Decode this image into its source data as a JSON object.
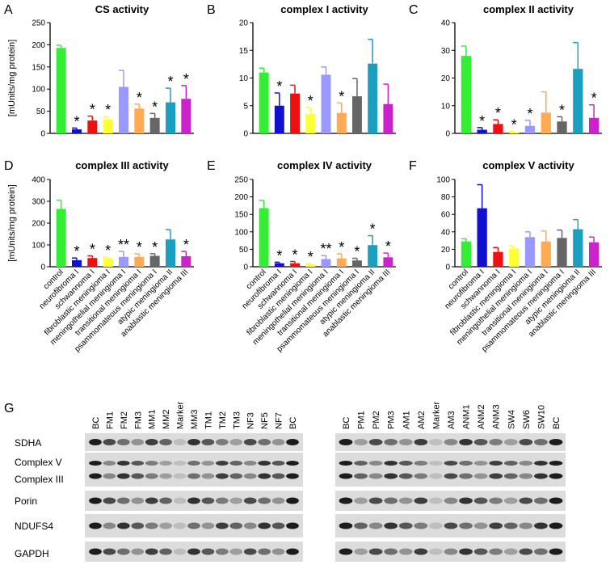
{
  "chart_data": [
    {
      "type": "bar",
      "letter": "A",
      "title": "CS activity",
      "ylabel": "[mUnits/mg protein]",
      "values": [
        193,
        9,
        29,
        31,
        105,
        56,
        35,
        70,
        78
      ],
      "errors": [
        6,
        3,
        10,
        7,
        37,
        10,
        10,
        32,
        30
      ],
      "markers": [
        null,
        "*",
        "*",
        "*",
        null,
        "*",
        "*",
        "*",
        "*"
      ],
      "colors": [
        "#33ee33",
        "#1010d0",
        "#ee1010",
        "#ffff33",
        "#9999ff",
        "#ffaa55",
        "#666666",
        "#1a9fbf",
        "#cc22cc"
      ],
      "ylim": [
        0,
        250
      ],
      "yticks": [
        0,
        50,
        100,
        150,
        200,
        250
      ]
    },
    {
      "type": "bar",
      "letter": "B",
      "title": "complex I activity",
      "values": [
        11,
        5,
        7.2,
        3.5,
        10.6,
        3.7,
        6.7,
        12.6,
        5.3
      ],
      "errors": [
        0.8,
        2.3,
        1.5,
        1.2,
        1.4,
        1.8,
        3.2,
        4.4,
        3.6
      ],
      "markers": [
        null,
        "*",
        null,
        "*",
        null,
        "*",
        null,
        null,
        null
      ],
      "colors": [
        "#33ee33",
        "#1010d0",
        "#ee1010",
        "#ffff33",
        "#9999ff",
        "#ffaa55",
        "#666666",
        "#1a9fbf",
        "#cc22cc"
      ],
      "ylim": [
        0,
        20
      ],
      "yticks": [
        0,
        5,
        10,
        15,
        20
      ]
    },
    {
      "type": "bar",
      "letter": "C",
      "title": "complex II activity",
      "values": [
        28,
        1.3,
        3.4,
        0.4,
        2.7,
        7.5,
        4.3,
        23.3,
        5.6
      ],
      "errors": [
        3.5,
        0.8,
        1.5,
        0.4,
        2,
        7.5,
        1.7,
        9.5,
        4.7
      ],
      "markers": [
        null,
        "*",
        "*",
        "*",
        "*",
        null,
        "*",
        null,
        "*"
      ],
      "colors": [
        "#33ee33",
        "#1010d0",
        "#ee1010",
        "#ffff33",
        "#9999ff",
        "#ffaa55",
        "#666666",
        "#1a9fbf",
        "#cc22cc"
      ],
      "ylim": [
        0,
        40
      ],
      "yticks": [
        0,
        10,
        20,
        30,
        40
      ]
    },
    {
      "type": "bar",
      "letter": "D",
      "title": "complex III activity",
      "ylabel": "[mUnits/mg protein]",
      "categories": [
        "control",
        "neurofibroma I",
        "schwannoma I",
        "fibroblastic meningioma I",
        "meningothelial meningioma I",
        "transitional meningioma I",
        "psammomateous meningioma I",
        "atypic meningioma II",
        "anablastic meningioma III"
      ],
      "values": [
        265,
        30,
        40,
        40,
        45,
        45,
        50,
        125,
        48
      ],
      "errors": [
        40,
        10,
        10,
        5,
        25,
        15,
        10,
        45,
        22
      ],
      "markers": [
        null,
        "*",
        "*",
        "*",
        "**",
        "*",
        "*",
        null,
        "*"
      ],
      "colors": [
        "#33ee33",
        "#1010d0",
        "#ee1010",
        "#ffff33",
        "#9999ff",
        "#ffaa55",
        "#666666",
        "#1a9fbf",
        "#cc22cc"
      ],
      "ylim": [
        0,
        400
      ],
      "yticks": [
        0,
        100,
        200,
        300,
        400
      ]
    },
    {
      "type": "bar",
      "letter": "E",
      "title": "complex IV activity",
      "categories": [
        "control",
        "neurofibroma I",
        "schwannoma I",
        "fibroblastic meningioma I",
        "meningothelial meningioma I",
        "transitional meningioma I",
        "psammomateous meningioma I",
        "atypic meningioma II",
        "anablastic meningioma III"
      ],
      "values": [
        168,
        10,
        10,
        7,
        22,
        24,
        18,
        62,
        27
      ],
      "errors": [
        22,
        3,
        5,
        2,
        10,
        13,
        6,
        27,
        12
      ],
      "markers": [
        null,
        "*",
        "*",
        "*",
        "**",
        "*",
        "*",
        "*",
        "*"
      ],
      "colors": [
        "#33ee33",
        "#1010d0",
        "#ee1010",
        "#ffff33",
        "#9999ff",
        "#ffaa55",
        "#666666",
        "#1a9fbf",
        "#cc22cc"
      ],
      "ylim": [
        0,
        250
      ],
      "yticks": [
        0,
        50,
        100,
        150,
        200,
        250
      ]
    },
    {
      "type": "bar",
      "letter": "F",
      "title": "complex V activity",
      "categories": [
        "control",
        "neurofibroma I",
        "schwannoma I",
        "fibroblastic meningioma I",
        "meningothelial meningioma I",
        "transitional meningioma I",
        "psammomateous meningioma I",
        "atypic meningioma II",
        "anablastic meningioma III"
      ],
      "values": [
        29,
        67,
        17,
        21,
        34,
        29,
        33,
        43,
        28
      ],
      "errors": [
        3,
        27,
        5,
        3,
        6,
        12,
        9,
        11,
        6
      ],
      "colors": [
        "#33ee33",
        "#1010d0",
        "#ee1010",
        "#ffff33",
        "#9999ff",
        "#ffaa55",
        "#666666",
        "#1a9fbf",
        "#cc22cc"
      ],
      "ylim": [
        0,
        100
      ],
      "yticks": [
        0,
        20,
        40,
        60,
        80,
        100
      ]
    }
  ],
  "blot": {
    "letter": "G",
    "left_lanes": [
      "BC",
      "FM1",
      "FM2",
      "FM3",
      "MM1",
      "MM2",
      "Marker",
      "MM3",
      "TM1",
      "TM2",
      "TM3",
      "NF3",
      "NF5",
      "NF7",
      "BC"
    ],
    "right_lanes": [
      "BC",
      "PM1",
      "PM2",
      "PM3",
      "AM1",
      "AM2",
      "Marker",
      "AM3",
      "ANM1",
      "ANM2",
      "ANM3",
      "SW4",
      "SW6",
      "SW10",
      "BC"
    ],
    "rows": [
      "SDHA",
      "Complex V",
      "Complex III",
      "Porin",
      "NDUFS4",
      "GAPDH"
    ]
  }
}
